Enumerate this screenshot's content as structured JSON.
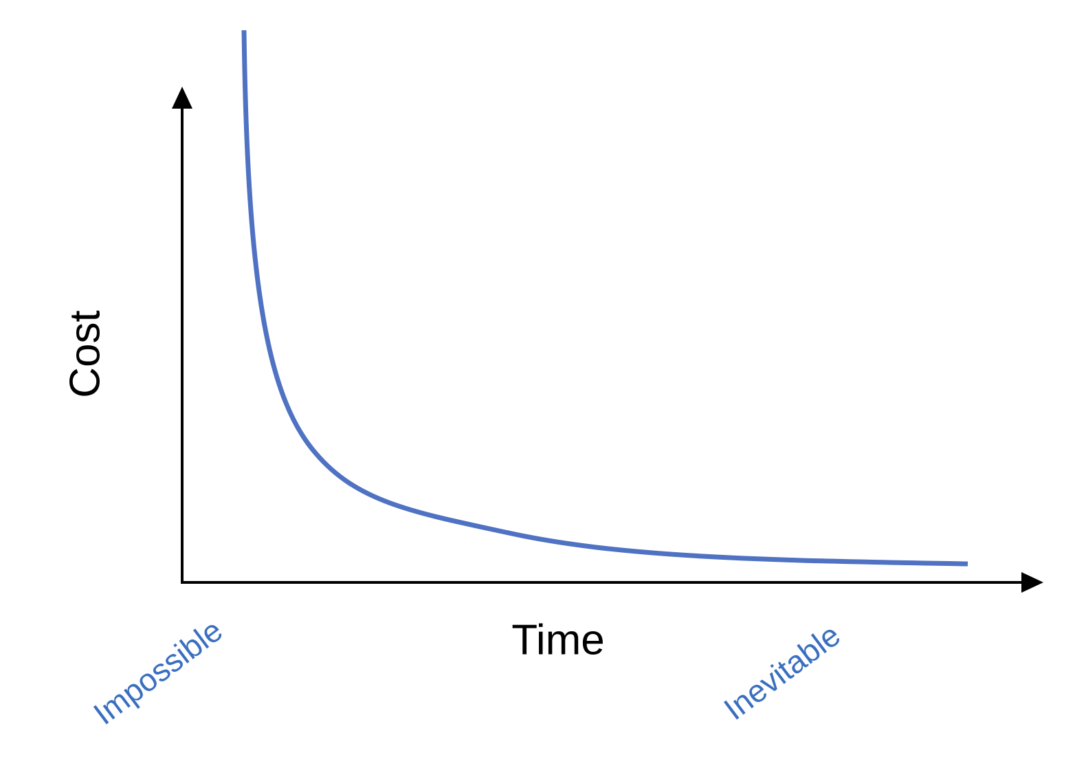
{
  "axes": {
    "x_label": "Time",
    "y_label": "Cost"
  },
  "annotations": {
    "start": "Impossible",
    "end": "Inevitable"
  }
}
